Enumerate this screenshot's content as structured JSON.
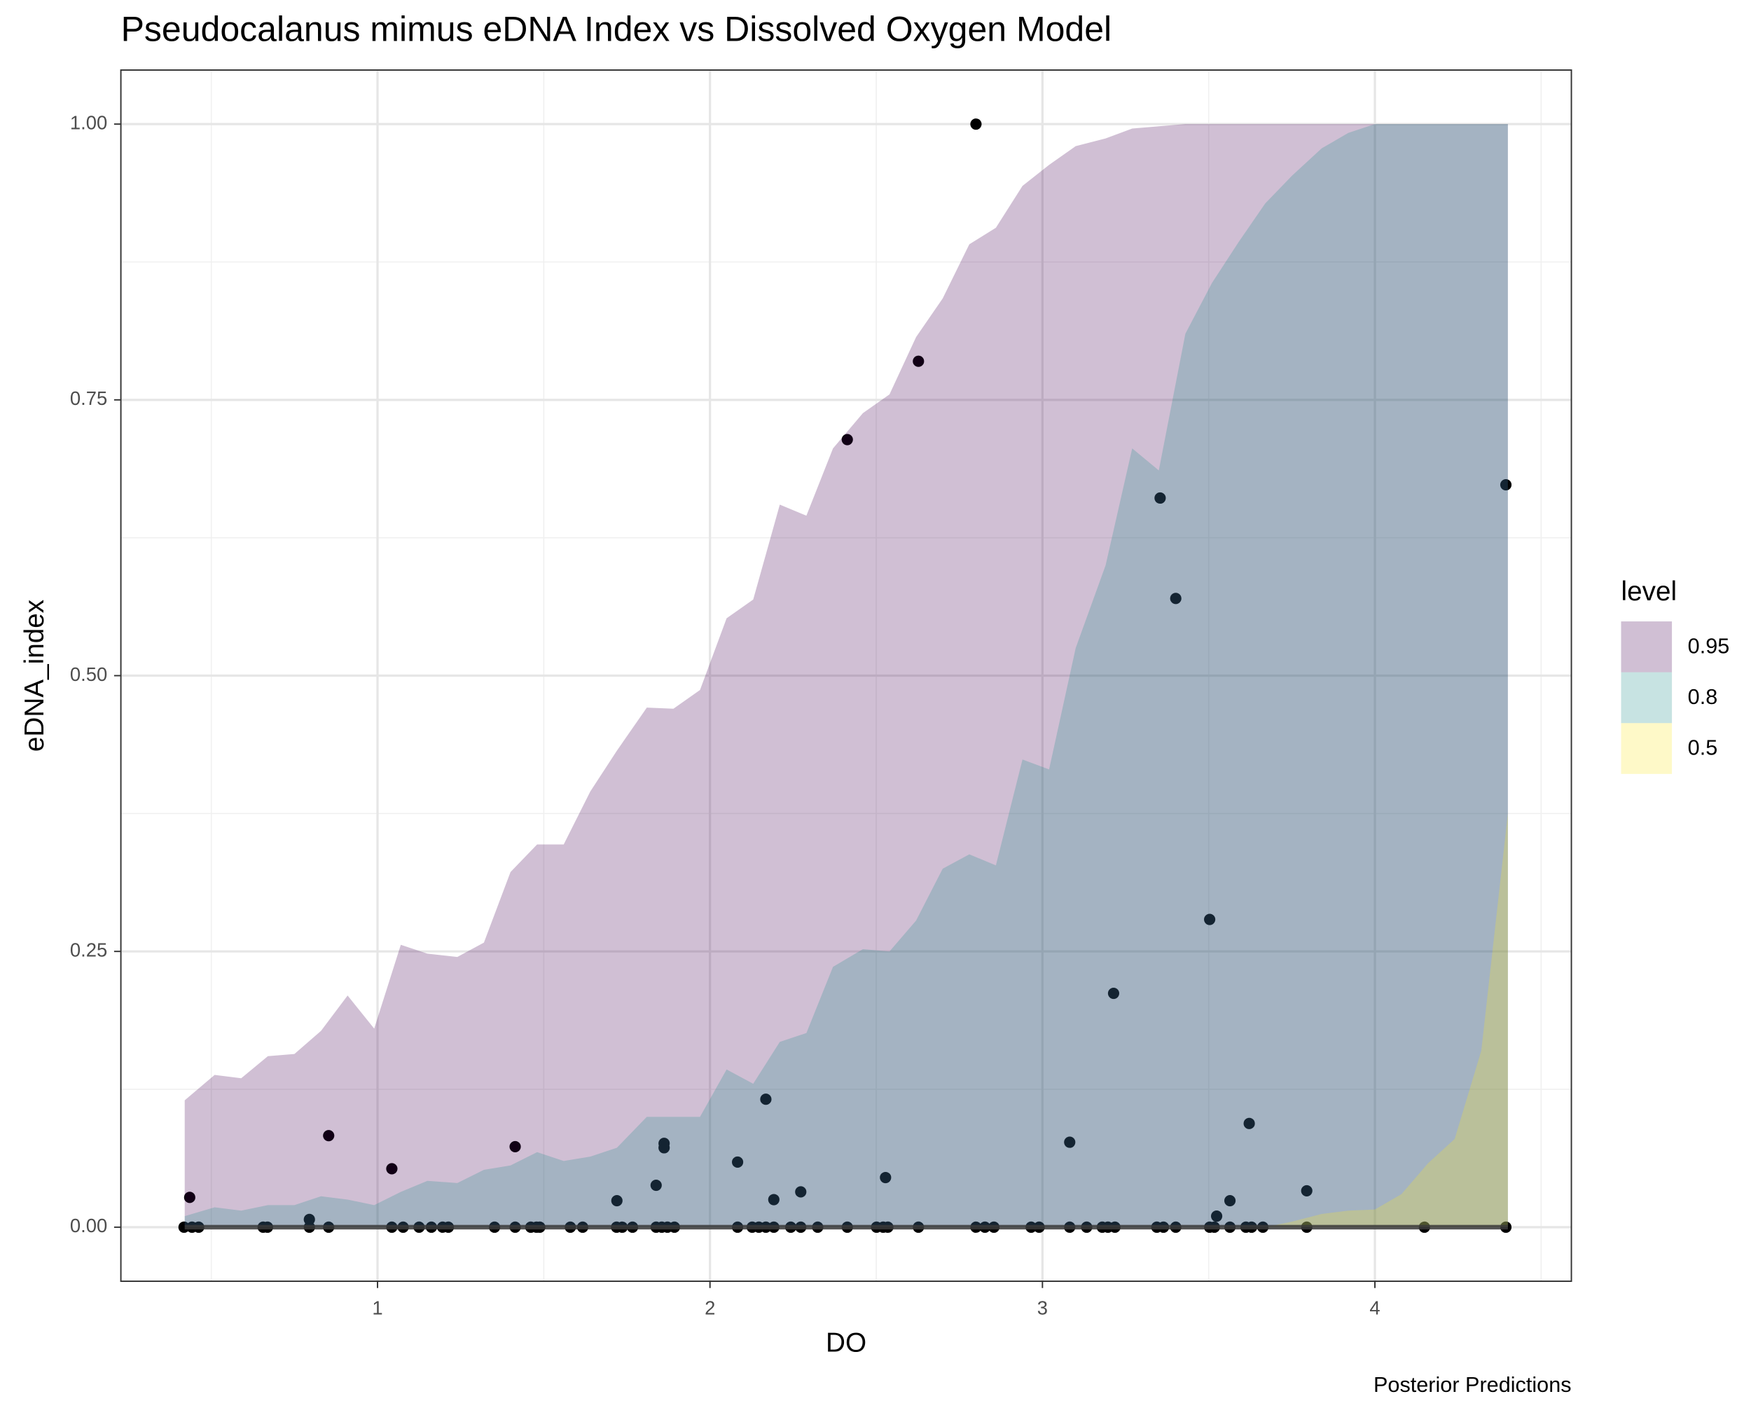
{
  "chart_data": {
    "type": "ribbon",
    "title": "Pseudocalanus mimus eDNA Index vs Dissolved Oxygen Model",
    "caption": "Posterior Predictions",
    "x_label": "DO",
    "y_label": "eDNA_index",
    "legend_title": "level",
    "legend_position": "right",
    "grid": true,
    "xlim": [
      0.228,
      4.591
    ],
    "ylim": [
      -0.049,
      1.049
    ],
    "xticks": [
      1,
      2,
      3,
      4
    ],
    "xminor": [
      0.5,
      1.5,
      2.5,
      3.5,
      4.5
    ],
    "yticks": [
      {
        "value": 0,
        "label": "0.00"
      },
      {
        "value": 0.25,
        "label": "0.25"
      },
      {
        "value": 0.5,
        "label": "0.50"
      },
      {
        "value": 0.75,
        "label": "0.75"
      },
      {
        "value": 1,
        "label": "1.00"
      }
    ],
    "yminor": [
      0.125,
      0.375,
      0.625,
      0.875
    ],
    "x": [
      0.42,
      0.51,
      0.59,
      0.67,
      0.75,
      0.83,
      0.91,
      0.99,
      1.07,
      1.15,
      1.24,
      1.32,
      1.4,
      1.48,
      1.56,
      1.64,
      1.72,
      1.81,
      1.89,
      1.97,
      2.05,
      2.13,
      2.21,
      2.29,
      2.37,
      2.46,
      2.54,
      2.62,
      2.7,
      2.78,
      2.86,
      2.94,
      3.02,
      3.1,
      3.19,
      3.27,
      3.35,
      3.43,
      3.51,
      3.59,
      3.67,
      3.75,
      3.84,
      3.92,
      4.0,
      4.08,
      4.16,
      4.24,
      4.32,
      4.4
    ],
    "ribbon_lower": [
      0,
      0,
      0,
      0,
      0,
      0,
      0,
      0,
      0,
      0,
      0,
      0,
      0,
      0,
      0,
      0,
      0,
      0,
      0,
      0,
      0,
      0,
      0,
      0,
      0,
      0,
      0,
      0,
      0,
      0,
      0,
      0,
      0,
      0,
      0,
      0,
      0,
      0,
      0,
      0,
      0,
      0,
      0,
      0,
      0,
      0,
      0,
      0,
      0,
      0
    ],
    "median": [
      0,
      0,
      0,
      0,
      0,
      0,
      0,
      0,
      0,
      0,
      0,
      0,
      0,
      0,
      0,
      0,
      0,
      0,
      0,
      0,
      0,
      0,
      0,
      0,
      0,
      0,
      0,
      0,
      0,
      0,
      0,
      0,
      0,
      0,
      0,
      0,
      0,
      0,
      0,
      0,
      0,
      0,
      0,
      0,
      0,
      0,
      0,
      0,
      0,
      0
    ],
    "median_color": "#3a3a3a",
    "opacity": 0.25,
    "series": [
      {
        "name": "0.95",
        "color": "#440154",
        "values": [
          0.115,
          0.138,
          0.135,
          0.155,
          0.157,
          0.178,
          0.21,
          0.18,
          0.256,
          0.248,
          0.245,
          0.258,
          0.322,
          0.347,
          0.347,
          0.395,
          0.432,
          0.471,
          0.47,
          0.487,
          0.552,
          0.569,
          0.655,
          0.645,
          0.706,
          0.738,
          0.755,
          0.807,
          0.842,
          0.891,
          0.906,
          0.944,
          0.963,
          0.98,
          0.987,
          0.996,
          0.998,
          1,
          1,
          1,
          1,
          1,
          1,
          1,
          1,
          1,
          1,
          1,
          1,
          1
        ]
      },
      {
        "name": "0.8",
        "color": "#21908c",
        "values": [
          0.01,
          0.018,
          0.015,
          0.02,
          0.02,
          0.028,
          0.025,
          0.02,
          0.032,
          0.042,
          0.04,
          0.052,
          0.056,
          0.068,
          0.06,
          0.064,
          0.072,
          0.1,
          0.1,
          0.1,
          0.143,
          0.13,
          0.168,
          0.176,
          0.236,
          0.252,
          0.25,
          0.278,
          0.325,
          0.338,
          0.328,
          0.424,
          0.415,
          0.525,
          0.6,
          0.706,
          0.686,
          0.81,
          0.856,
          0.893,
          0.928,
          0.953,
          0.978,
          0.992,
          1,
          1,
          1,
          1,
          1,
          1
        ]
      },
      {
        "name": "0.5",
        "color": "#fde725",
        "values": [
          0,
          0,
          0,
          0,
          0,
          0,
          0,
          0,
          0,
          0,
          0,
          0,
          0,
          0,
          0,
          0,
          0,
          0,
          0,
          0,
          0,
          0,
          0,
          0,
          0,
          0,
          0,
          0,
          0,
          0,
          0,
          0,
          0,
          0,
          0,
          0,
          0,
          0,
          0,
          0,
          0,
          0.005,
          0.012,
          0.015,
          0.016,
          0.03,
          0.058,
          0.08,
          0.16,
          0.375
        ]
      }
    ],
    "points": {
      "color": "#000000",
      "x": [
        0.435,
        0.853,
        1.043,
        1.414,
        1.72,
        1.838,
        1.862,
        1.862,
        0.795,
        2.083,
        2.168,
        2.192,
        2.273,
        2.413,
        2.528,
        2.627,
        2.8,
        3.082,
        3.214,
        3.354,
        3.401,
        3.503,
        3.524,
        3.564,
        3.622,
        3.795,
        4.394,
        0.418,
        0.442,
        0.462,
        0.656,
        0.669,
        0.795,
        0.853,
        1.043,
        1.077,
        1.125,
        1.162,
        1.196,
        1.213,
        1.352,
        1.414,
        1.461,
        1.478,
        1.488,
        1.58,
        1.617,
        1.719,
        1.736,
        1.767,
        1.838,
        1.855,
        1.872,
        1.893,
        2.083,
        2.127,
        2.147,
        2.168,
        2.192,
        2.243,
        2.273,
        2.324,
        2.413,
        2.501,
        2.521,
        2.535,
        2.627,
        2.8,
        2.827,
        2.854,
        2.966,
        2.99,
        3.082,
        3.133,
        3.18,
        3.197,
        3.218,
        3.344,
        3.364,
        3.401,
        3.503,
        3.517,
        3.564,
        3.612,
        3.629,
        3.663,
        3.795,
        4.149,
        4.394
      ],
      "y": [
        0.027,
        0.083,
        0.053,
        0.073,
        0.024,
        0.038,
        0.076,
        0.072,
        0.007,
        0.059,
        0.116,
        0.025,
        0.032,
        0.714,
        0.045,
        0.785,
        1.0,
        0.077,
        0.212,
        0.661,
        0.57,
        0.279,
        0.01,
        0.024,
        0.094,
        0.033,
        0.673,
        0,
        0,
        0,
        0,
        0,
        0,
        0,
        0,
        0,
        0,
        0,
        0,
        0,
        0,
        0,
        0,
        0,
        0,
        0,
        0,
        0,
        0,
        0,
        0,
        0,
        0,
        0,
        0,
        0,
        0,
        0,
        0,
        0,
        0,
        0,
        0,
        0,
        0,
        0,
        0,
        0,
        0,
        0,
        0,
        0,
        0,
        0,
        0,
        0,
        0,
        0,
        0,
        0,
        0,
        0,
        0,
        0,
        0,
        0,
        0,
        0,
        0
      ]
    }
  }
}
